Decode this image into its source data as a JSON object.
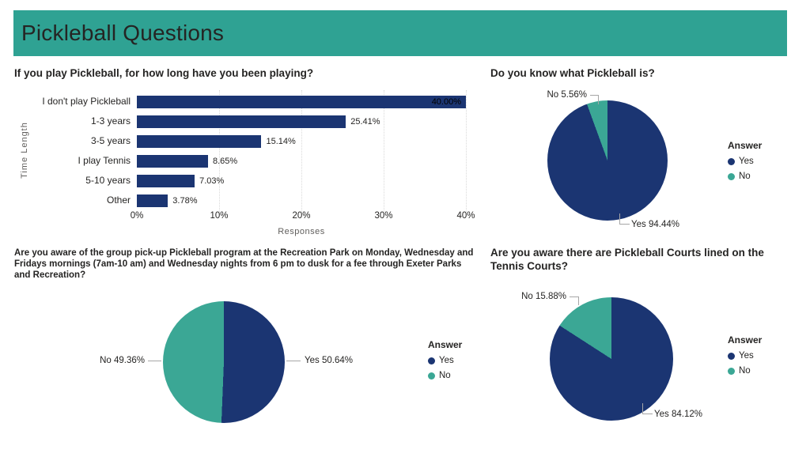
{
  "header": {
    "title": "Pickleball Questions"
  },
  "colors": {
    "yes": "#1B3572",
    "no": "#3BA795",
    "header_bg": "#2FA293",
    "title_text": "#252423",
    "leader_line": "#A6A6A6"
  },
  "legend": {
    "title": "Answer",
    "items": [
      {
        "label": "Yes",
        "color": "#1B3572"
      },
      {
        "label": "No",
        "color": "#3BA795"
      }
    ]
  },
  "chart_data": [
    {
      "id": "play-duration-bar",
      "type": "bar",
      "orientation": "horizontal",
      "title": "If you play Pickleball, for how long have you been playing?",
      "xlabel": "Responses",
      "ylabel": "Time Length",
      "xlim": [
        0,
        40
      ],
      "x_ticks": [
        "0%",
        "10%",
        "20%",
        "30%",
        "40%"
      ],
      "grid": "vertical-dotted",
      "categories": [
        "I don't play Pickleball",
        "1-3 years",
        "3-5 years",
        "I play Tennis",
        "5-10 years",
        "Other"
      ],
      "values": [
        40.0,
        25.41,
        15.14,
        8.65,
        7.03,
        3.78
      ],
      "value_labels": [
        "40.00%",
        "25.41%",
        "15.14%",
        "8.65%",
        "7.03%",
        "3.78%"
      ]
    },
    {
      "id": "know-pickleball-pie",
      "type": "pie",
      "title": "Do you know what Pickleball is?",
      "legend_title": "Answer",
      "legend_position": "right",
      "slices": [
        {
          "label": "Yes",
          "value": 94.44,
          "callout": "Yes 94.44%"
        },
        {
          "label": "No",
          "value": 5.56,
          "callout": "No 5.56%"
        }
      ]
    },
    {
      "id": "program-awareness-pie",
      "type": "pie",
      "title": "Are you aware of the group pick-up Pickleball program at the Recreation Park on Monday, Wednesday and Fridays mornings (7am-10 am) and Wednesday nights from 6 pm to dusk for a fee through Exeter Parks and Recreation?",
      "legend_title": "Answer",
      "legend_position": "right",
      "slices": [
        {
          "label": "Yes",
          "value": 50.64,
          "callout": "Yes 50.64%"
        },
        {
          "label": "No",
          "value": 49.36,
          "callout": "No 49.36%"
        }
      ]
    },
    {
      "id": "courts-awareness-pie",
      "type": "pie",
      "title": "Are you aware there are Pickleball Courts lined on the Tennis Courts?",
      "legend_title": "Answer",
      "legend_position": "right",
      "slices": [
        {
          "label": "Yes",
          "value": 84.12,
          "callout": "Yes 84.12%"
        },
        {
          "label": "No",
          "value": 15.88,
          "callout": "No 15.88%"
        }
      ]
    }
  ]
}
